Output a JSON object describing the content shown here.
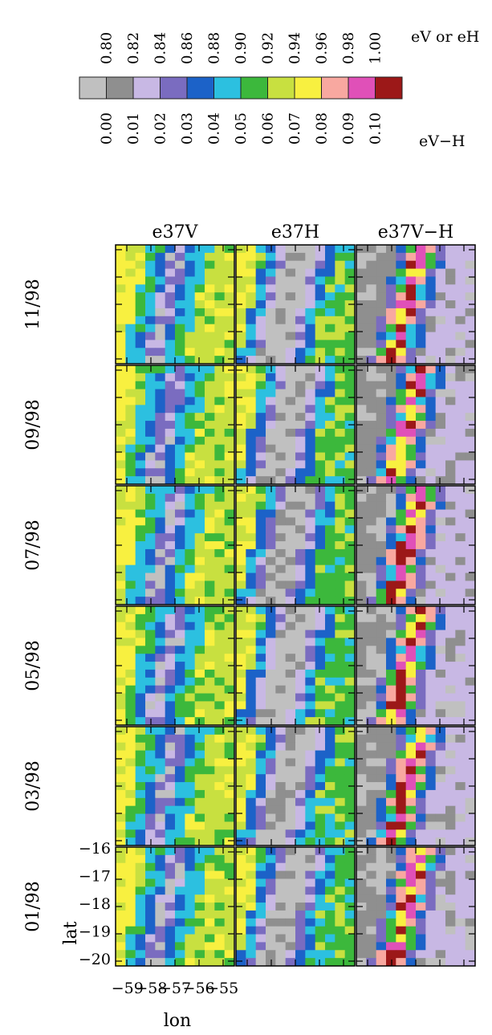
{
  "legend": {
    "top_labels": [
      "0.80",
      "0.82",
      "0.84",
      "0.86",
      "0.88",
      "0.90",
      "0.92",
      "0.94",
      "0.96",
      "0.98",
      "1.00"
    ],
    "top_unit": "eV or eH",
    "bottom_labels": [
      "0.00",
      "0.01",
      "0.02",
      "0.03",
      "0.04",
      "0.05",
      "0.06",
      "0.07",
      "0.08",
      "0.09",
      "0.10"
    ],
    "bottom_unit": "eV−H",
    "colors": [
      "#c0c0c0",
      "#8f8f8f",
      "#c8b8e4",
      "#7a6cc0",
      "#1c62c8",
      "#2cc0e0",
      "#3cb83c",
      "#c8e040",
      "#f8f040",
      "#f8a8a0",
      "#e050b8",
      "#9c1818"
    ]
  },
  "chart_data": {
    "type": "heatmap",
    "columns": [
      "e37V",
      "e37H",
      "e37V−H"
    ],
    "rows": [
      "11/98",
      "09/98",
      "07/98",
      "05/98",
      "03/98",
      "01/98"
    ],
    "x_ticks": [
      "−59",
      "−58",
      "−57",
      "−56",
      "−55"
    ],
    "y_ticks": [
      "−16",
      "−17",
      "−18",
      "−19",
      "−20"
    ],
    "xlabel": "lon",
    "ylabel": "lat",
    "xlim": [
      -59.5,
      -54.5
    ],
    "ylim": [
      -20,
      -16
    ],
    "grid_size": [
      12,
      15
    ]
  }
}
